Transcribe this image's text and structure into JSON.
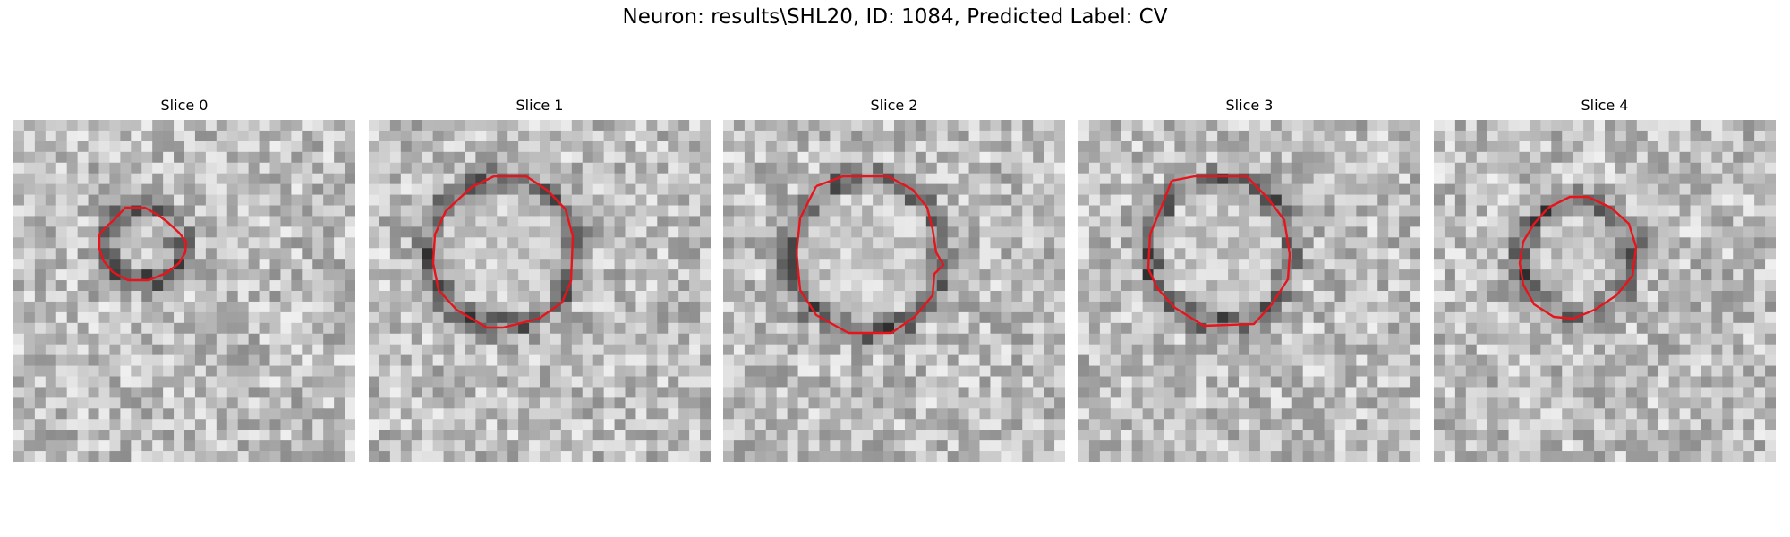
{
  "figure": {
    "title": "Neuron: results\\SHL20, ID: 1084, Predicted Label: CV"
  },
  "panels": [
    {
      "title": "Slice 0"
    },
    {
      "title": "Slice 1"
    },
    {
      "title": "Slice 2"
    },
    {
      "title": "Slice 3"
    },
    {
      "title": "Slice 4"
    }
  ],
  "colors": {
    "contour": "#e8141c",
    "image_colormap": "grayscale"
  }
}
